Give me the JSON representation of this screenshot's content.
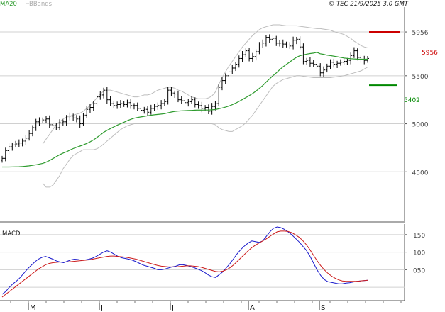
{
  "header": {
    "ma_label": "MA20",
    "bb_label": "BBands",
    "timestamp": "© TEC 21/9/2025 3:0 GMT",
    "ma_color": "#2e9b2e",
    "bb_color": "#bdbdbd"
  },
  "macd_label": "MACD",
  "levels": {
    "resistance": {
      "value": "5956",
      "color": "#cc0000"
    },
    "support": {
      "value": "5402",
      "color": "#008800"
    }
  },
  "chart_data": [
    {
      "type": "line",
      "panel": "price",
      "series_kind": "ohlc_bars_with_overlays",
      "y_ticks": [
        "4500",
        "5000",
        "5500",
        "5956"
      ],
      "ylim": [
        4000,
        6200
      ],
      "x_ticks": [
        "M",
        "J",
        "J",
        "A",
        "S"
      ],
      "close": [
        4640,
        4720,
        4760,
        4780,
        4790,
        4800,
        4820,
        4850,
        4900,
        4960,
        5020,
        5030,
        5040,
        5050,
        4990,
        4980,
        4960,
        5010,
        5020,
        5060,
        5080,
        5060,
        5050,
        5000,
        5090,
        5150,
        5170,
        5210,
        5280,
        5300,
        5350,
        5250,
        5210,
        5190,
        5200,
        5210,
        5200,
        5220,
        5190,
        5190,
        5160,
        5140,
        5150,
        5120,
        5160,
        5180,
        5190,
        5210,
        5230,
        5350,
        5320,
        5310,
        5250,
        5240,
        5220,
        5230,
        5250,
        5200,
        5190,
        5160,
        5170,
        5130,
        5180,
        5210,
        5380,
        5450,
        5500,
        5540,
        5580,
        5620,
        5680,
        5720,
        5760,
        5680,
        5700,
        5750,
        5820,
        5840,
        5900,
        5880,
        5890,
        5840,
        5840,
        5830,
        5820,
        5810,
        5870,
        5880,
        5800,
        5650,
        5660,
        5630,
        5620,
        5600,
        5530,
        5560,
        5600,
        5640,
        5620,
        5630,
        5640,
        5650,
        5660,
        5710,
        5760,
        5690,
        5670,
        5660,
        5680
      ],
      "ma20": [
        4550,
        4550,
        4550,
        4551,
        4552,
        4553,
        4555,
        4558,
        4562,
        4567,
        4573,
        4580,
        4588,
        4600,
        4617,
        4637,
        4658,
        4678,
        4695,
        4708,
        4726,
        4742,
        4755,
        4768,
        4780,
        4795,
        4812,
        4832,
        4857,
        4883,
        4912,
        4932,
        4950,
        4968,
        4985,
        5001,
        5016,
        5032,
        5046,
        5058,
        5065,
        5071,
        5077,
        5083,
        5089,
        5093,
        5097,
        5101,
        5105,
        5114,
        5122,
        5129,
        5132,
        5135,
        5136,
        5138,
        5139,
        5141,
        5143,
        5142,
        5143,
        5143,
        5145,
        5148,
        5156,
        5164,
        5173,
        5185,
        5199,
        5215,
        5233,
        5253,
        5273,
        5293,
        5315,
        5340,
        5369,
        5398,
        5434,
        5467,
        5500,
        5530,
        5563,
        5593,
        5618,
        5643,
        5669,
        5693,
        5708,
        5717,
        5725,
        5731,
        5736,
        5744,
        5729,
        5723,
        5714,
        5710,
        5704,
        5698,
        5691,
        5685,
        5680,
        5677,
        5675,
        5673,
        5672,
        5672,
        5673
      ],
      "bb_upper": [
        null,
        null,
        null,
        null,
        null,
        null,
        null,
        null,
        null,
        null,
        null,
        null,
        4790,
        4840,
        4890,
        4940,
        4990,
        5020,
        5050,
        5070,
        5080,
        5090,
        5100,
        5110,
        5130,
        5160,
        5190,
        5230,
        5270,
        5310,
        5340,
        5350,
        5350,
        5340,
        5330,
        5320,
        5310,
        5300,
        5290,
        5280,
        5280,
        5290,
        5300,
        5300,
        5310,
        5330,
        5350,
        5360,
        5370,
        5380,
        5380,
        5370,
        5350,
        5340,
        5320,
        5300,
        5280,
        5270,
        5260,
        5260,
        5260,
        5270,
        5290,
        5330,
        5410,
        5480,
        5540,
        5600,
        5650,
        5700,
        5750,
        5800,
        5840,
        5880,
        5920,
        5950,
        5980,
        6000,
        6010,
        6020,
        6030,
        6030,
        6030,
        6025,
        6020,
        6020,
        6020,
        6020,
        6015,
        6010,
        6005,
        6000,
        5995,
        5990,
        5990,
        5985,
        5980,
        5975,
        5960,
        5950,
        5940,
        5930,
        5910,
        5890,
        5860,
        5840,
        5815,
        5800,
        5790
      ],
      "bb_lower": [
        null,
        null,
        null,
        null,
        null,
        null,
        null,
        null,
        null,
        null,
        null,
        null,
        4380,
        4340,
        4340,
        4360,
        4410,
        4460,
        4530,
        4580,
        4630,
        4670,
        4690,
        4710,
        4730,
        4730,
        4730,
        4730,
        4740,
        4760,
        4790,
        4820,
        4850,
        4880,
        4910,
        4940,
        4960,
        4980,
        4990,
        5000,
        5000,
        5000,
        5000,
        5000,
        5000,
        5000,
        5000,
        5000,
        5000,
        5000,
        5000,
        5000,
        5000,
        5000,
        5000,
        5000,
        5000,
        5000,
        5000,
        5000,
        5000,
        5000,
        5000,
        4990,
        4960,
        4940,
        4930,
        4920,
        4920,
        4940,
        4960,
        4980,
        5010,
        5050,
        5090,
        5140,
        5190,
        5240,
        5290,
        5340,
        5390,
        5420,
        5440,
        5460,
        5470,
        5480,
        5490,
        5500,
        5500,
        5495,
        5490,
        5485,
        5480,
        5480,
        5480,
        5480,
        5480,
        5480,
        5485,
        5490,
        5495,
        5500,
        5510,
        5520,
        5530,
        5540,
        5550,
        5570,
        5590
      ]
    },
    {
      "type": "line",
      "panel": "macd",
      "title": "MACD",
      "y_ticks": [
        "150",
        "100",
        "050"
      ],
      "ylim": [
        -30,
        180
      ],
      "x_ticks": [
        "M",
        "J",
        "J",
        "A",
        "S"
      ],
      "series": [
        {
          "color": "#1a1acc",
          "values": [
            -20,
            -12,
            0,
            10,
            18,
            28,
            40,
            52,
            62,
            72,
            80,
            85,
            88,
            84,
            80,
            75,
            72,
            70,
            74,
            78,
            80,
            79,
            77,
            78,
            80,
            83,
            88,
            94,
            100,
            104,
            100,
            94,
            88,
            84,
            82,
            80,
            77,
            73,
            68,
            63,
            60,
            57,
            54,
            50,
            50,
            52,
            55,
            58,
            60,
            64,
            64,
            62,
            59,
            56,
            52,
            48,
            42,
            35,
            30,
            28,
            36,
            44,
            56,
            68,
            82,
            96,
            108,
            118,
            126,
            132,
            130,
            128,
            132,
            145,
            158,
            168,
            172,
            170,
            165,
            158,
            150,
            140,
            130,
            118,
            106,
            90,
            70,
            50,
            34,
            22,
            16,
            14,
            12,
            10,
            10,
            12,
            13,
            15,
            17,
            18,
            19,
            20
          ]
        },
        {
          "color": "#cc1a1a",
          "values": [
            -28,
            -20,
            -12,
            -4,
            4,
            12,
            20,
            28,
            36,
            44,
            52,
            58,
            64,
            68,
            70,
            71,
            72,
            72,
            72,
            73,
            74,
            75,
            76,
            77,
            78,
            80,
            82,
            84,
            86,
            88,
            89,
            89,
            88,
            87,
            86,
            84,
            82,
            80,
            77,
            74,
            71,
            68,
            65,
            62,
            60,
            59,
            58,
            58,
            58,
            59,
            60,
            61,
            61,
            60,
            59,
            57,
            54,
            51,
            48,
            45,
            44,
            46,
            50,
            56,
            64,
            74,
            84,
            94,
            104,
            113,
            120,
            126,
            132,
            138,
            145,
            152,
            158,
            160,
            160,
            159,
            156,
            150,
            143,
            134,
            122,
            108,
            92,
            76,
            62,
            50,
            40,
            32,
            26,
            21,
            18,
            17,
            17,
            17,
            17,
            18,
            19,
            20
          ]
        }
      ]
    }
  ]
}
